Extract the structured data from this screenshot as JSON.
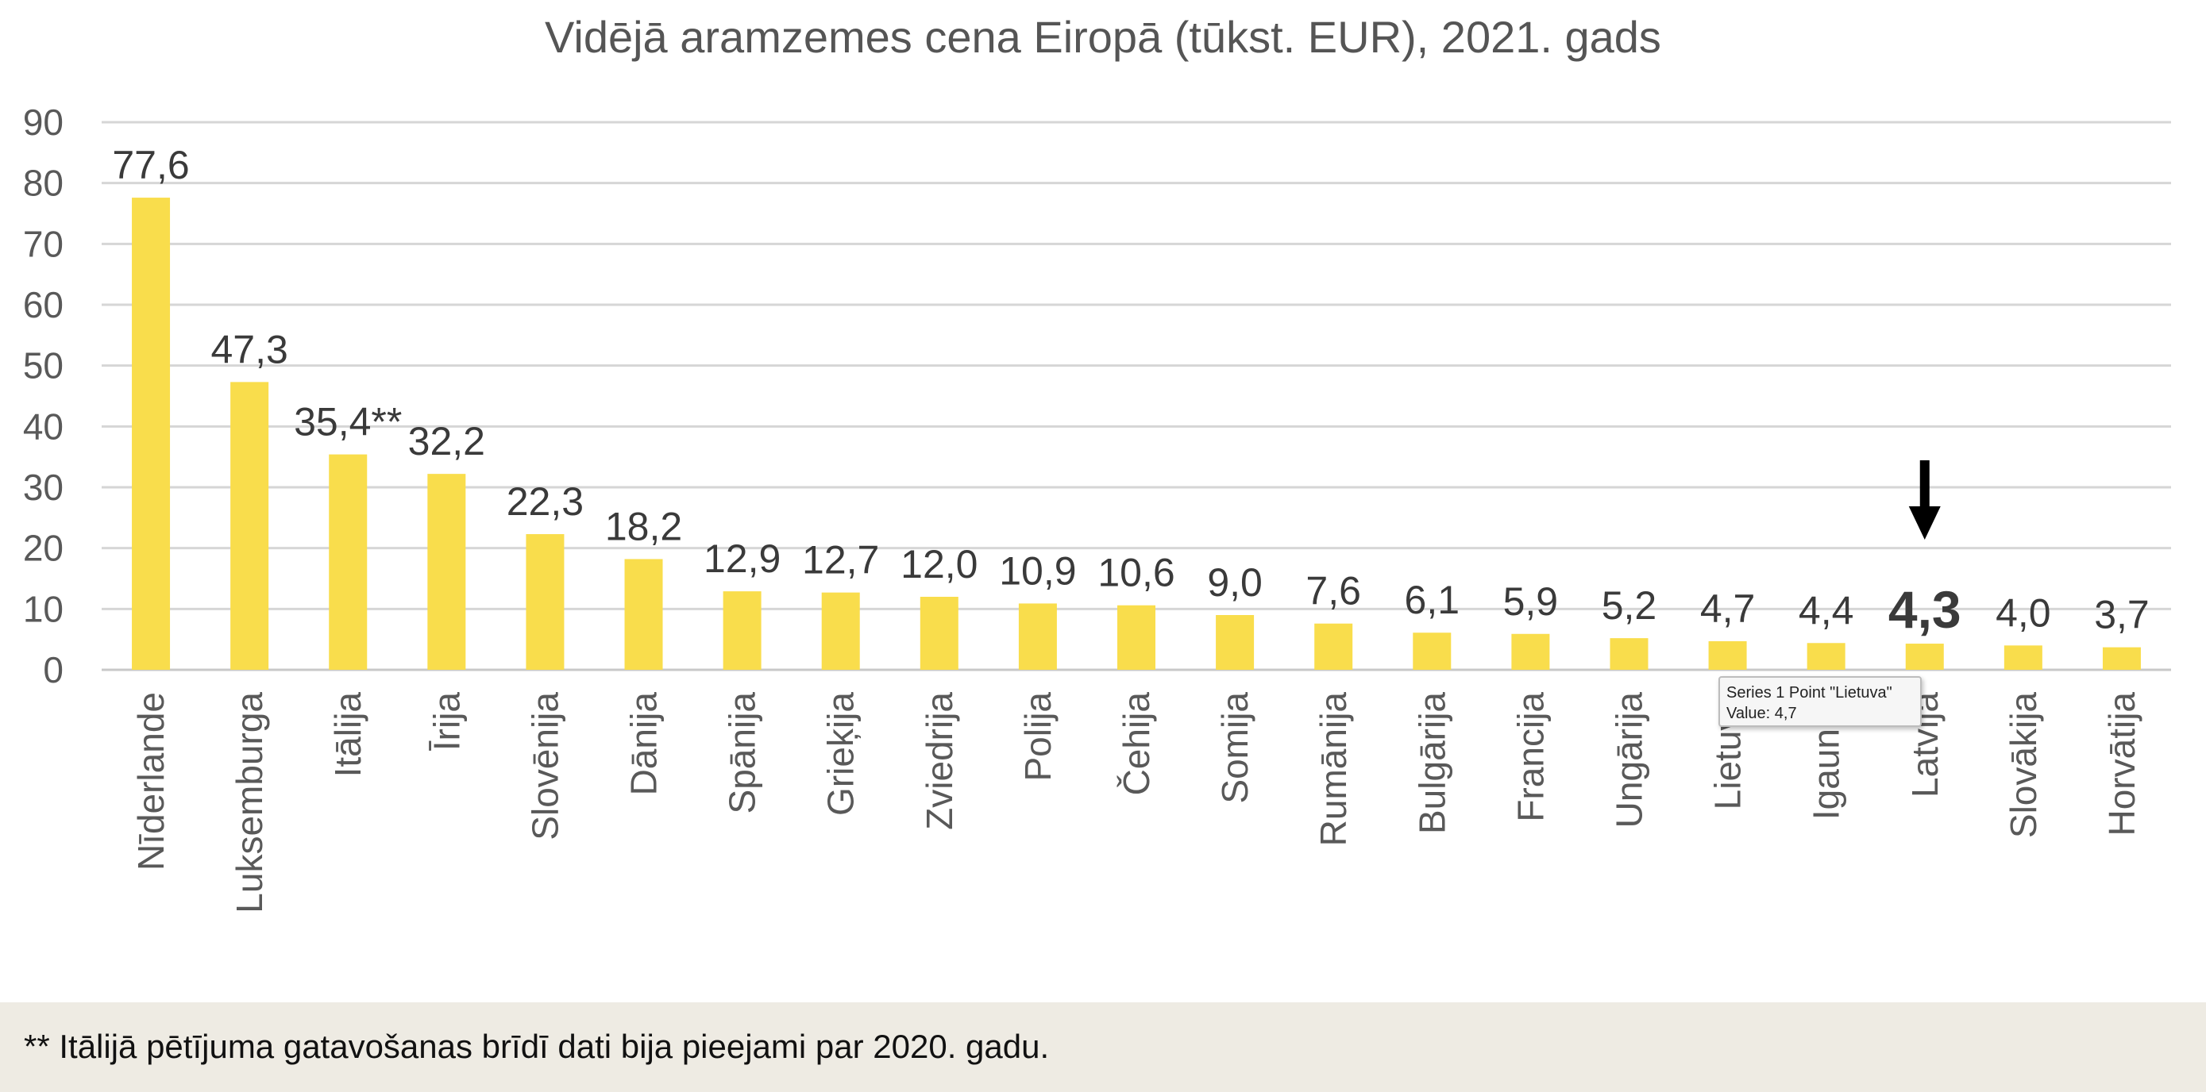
{
  "chart_data": {
    "type": "bar",
    "title": "Vidējā aramzemes cena Eiropā (tūkst. EUR), 2021. gads",
    "xlabel": "",
    "ylabel": "",
    "ylim": [
      0,
      90
    ],
    "yticks": [
      "90",
      "80",
      "70",
      "60",
      "50",
      "40",
      "30",
      "20",
      "10",
      "0"
    ],
    "grid": true,
    "legend": "none",
    "bar_color": "#f9dd4c",
    "categories": [
      "Nīderlande",
      "Luksemburga",
      "Itālija",
      "Īrija",
      "Slovēnija",
      "Dānija",
      "Spānija",
      "Grieķija",
      "Zviedrija",
      "Polija",
      "Čehija",
      "Somija",
      "Rumānija",
      "Bulgārija",
      "Francija",
      "Ungārija",
      "Lietuva",
      "Igaunija",
      "Latvija",
      "Slovākija",
      "Horvātija"
    ],
    "values": [
      77.6,
      47.3,
      35.4,
      32.2,
      22.3,
      18.2,
      12.9,
      12.7,
      12.0,
      10.9,
      10.6,
      9.0,
      7.6,
      6.1,
      5.9,
      5.2,
      4.7,
      4.4,
      4.3,
      4.0,
      3.7
    ],
    "data_labels": [
      "77,6",
      "47,3",
      "35,4**",
      "32,2",
      "22,3",
      "18,2",
      "12,9",
      "12,7",
      "12,0",
      "10,9",
      "10,6",
      "9,0",
      "7,6",
      "6,1",
      "5,9",
      "5,2",
      "4,7",
      "4,4",
      "4,3",
      "4,0",
      "3,7"
    ],
    "highlight": {
      "category": "Latvija",
      "marker": "down-arrow-icon"
    }
  },
  "tooltip": {
    "line1": "Series 1 Point \"Lietuva\"",
    "line2": "Value: 4,7"
  },
  "footnote": "** Itālijā pētījuma gatavošanas brīdī dati bija pieejami par 2020. gadu."
}
